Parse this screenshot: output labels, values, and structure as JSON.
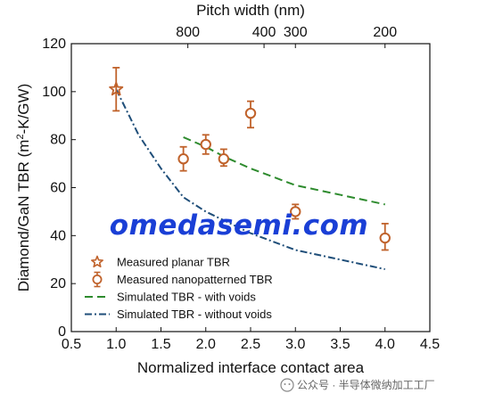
{
  "chart_data": {
    "type": "scatter",
    "title": "",
    "xlabel": "Normalized interface contact area",
    "ylabel": "Diamond/GaN TBR (m²-K/GW)",
    "ylabel_parts": {
      "pre": "Diamond/GaN TBR (m",
      "sup": "2",
      "post": "-K/GW)"
    },
    "top_axis_label": "Pitch width (nm)",
    "xlim": [
      0.5,
      4.5
    ],
    "ylim": [
      0,
      120
    ],
    "x_ticks": [
      0.5,
      1.0,
      1.5,
      2.0,
      2.5,
      3.0,
      3.5,
      4.0,
      4.5
    ],
    "x_tick_labels": [
      "0.5",
      "1.0",
      "1.5",
      "2.0",
      "2.5",
      "3.0",
      "3.5",
      "4.0",
      "4.5"
    ],
    "y_ticks": [
      0,
      20,
      40,
      60,
      80,
      100,
      120
    ],
    "y_tick_labels": [
      "0",
      "20",
      "40",
      "60",
      "80",
      "100",
      "120"
    ],
    "top_ticks": [
      {
        "x": 1.8,
        "label": "800"
      },
      {
        "x": 2.65,
        "label": "400"
      },
      {
        "x": 3.0,
        "label": "300"
      },
      {
        "x": 4.0,
        "label": "200"
      }
    ],
    "grid": false,
    "legend_position": "bottom-left",
    "series": [
      {
        "name": "Measured planar TBR",
        "kind": "star",
        "color": "#c0622b",
        "points": [
          {
            "x": 1.0,
            "y": 101,
            "err_low": 92,
            "err_high": 110
          }
        ]
      },
      {
        "name": "Measured nanopatterned TBR",
        "kind": "circle",
        "color": "#c0622b",
        "points": [
          {
            "x": 1.75,
            "y": 72,
            "err_low": 67,
            "err_high": 77
          },
          {
            "x": 2.0,
            "y": 78,
            "err_low": 74,
            "err_high": 82
          },
          {
            "x": 2.2,
            "y": 72,
            "err_low": 69,
            "err_high": 76
          },
          {
            "x": 2.5,
            "y": 91,
            "err_low": 85,
            "err_high": 96
          },
          {
            "x": 3.0,
            "y": 50,
            "err_low": 47,
            "err_high": 53
          },
          {
            "x": 4.0,
            "y": 39,
            "err_low": 34,
            "err_high": 45
          }
        ]
      },
      {
        "name": "Simulated TBR - with voids",
        "kind": "dashed",
        "color": "#2e8b2e",
        "points": [
          {
            "x": 1.75,
            "y": 81
          },
          {
            "x": 2.0,
            "y": 77
          },
          {
            "x": 2.2,
            "y": 73
          },
          {
            "x": 2.5,
            "y": 68
          },
          {
            "x": 3.0,
            "y": 61
          },
          {
            "x": 3.5,
            "y": 57
          },
          {
            "x": 4.0,
            "y": 53
          }
        ]
      },
      {
        "name": "Simulated TBR - without voids",
        "kind": "dashdot",
        "color": "#1f4e79",
        "points": [
          {
            "x": 1.0,
            "y": 101
          },
          {
            "x": 1.25,
            "y": 82
          },
          {
            "x": 1.5,
            "y": 68
          },
          {
            "x": 1.75,
            "y": 56
          },
          {
            "x": 2.0,
            "y": 50
          },
          {
            "x": 2.5,
            "y": 41
          },
          {
            "x": 3.0,
            "y": 34
          },
          {
            "x": 3.5,
            "y": 30
          },
          {
            "x": 4.0,
            "y": 26
          }
        ]
      }
    ]
  },
  "watermark": "omedasemi.com",
  "credit": "公众号 · 半导体微纳加工工厂",
  "colors": {
    "measured": "#c0622b",
    "with_voids": "#2e8b2e",
    "without_voids": "#1f4e79",
    "watermark": "#1a3fd6"
  }
}
